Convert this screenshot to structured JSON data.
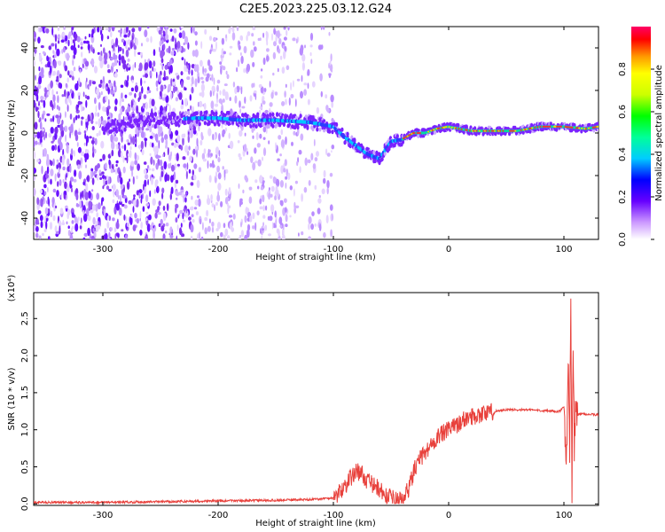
{
  "title": "C2E5.2023.225.03.12.G24",
  "colors": {
    "snr_line": "#e8413c",
    "spec_low": "#8f2cf0",
    "spec_mid": "#00c8ff",
    "spec_high": "#ff2020"
  },
  "chart_data": [
    {
      "type": "heatmap",
      "name": "spectrogram",
      "xlabel": "Height of straight line (km)",
      "ylabel": "Frequency (Hz)",
      "xlim": [
        -360,
        130
      ],
      "ylim": [
        -50,
        50
      ],
      "xticks": [
        -300,
        -200,
        -100,
        0,
        100
      ],
      "yticks": [
        -40,
        -20,
        0,
        20,
        40
      ],
      "colorbar": {
        "label": "Normalized spectral amplitude",
        "range": [
          0,
          1
        ],
        "ticks": [
          "0.0",
          "0.2",
          "0.4",
          "0.6",
          "0.8"
        ]
      },
      "ridge": {
        "x": [
          -280,
          -250,
          -220,
          -200,
          -180,
          -150,
          -120,
          -100,
          -90,
          -80,
          -70,
          -60,
          -50,
          -40,
          -30,
          -20,
          -10,
          0,
          20,
          40,
          60,
          80,
          100,
          120,
          130
        ],
        "y": [
          6,
          6,
          7,
          7,
          6,
          6,
          5,
          3,
          -2,
          -6,
          -10,
          -12,
          -4,
          -3,
          0,
          0,
          2,
          3,
          1,
          1,
          1,
          3,
          3,
          2,
          3
        ]
      }
    },
    {
      "type": "line",
      "name": "snr",
      "xlabel": "Height of straight line (km)",
      "ylabel": "SNR (10 * v/v)",
      "multiplier": "(x10⁴)",
      "xlim": [
        -360,
        130
      ],
      "ylim": [
        -0.02,
        2.85
      ],
      "xticks": [
        -300,
        -200,
        -100,
        0,
        100
      ],
      "yticks": [
        "0.0",
        "0.5",
        "1.0",
        "1.5",
        "2.0",
        "2.5"
      ],
      "x": [
        -360,
        -300,
        -250,
        -200,
        -150,
        -120,
        -100,
        -95,
        -90,
        -85,
        -80,
        -75,
        -70,
        -65,
        -60,
        -55,
        -50,
        -45,
        -40,
        -35,
        -30,
        -25,
        -20,
        -15,
        -10,
        -5,
        0,
        5,
        10,
        15,
        20,
        25,
        30,
        40,
        50,
        60,
        70,
        80,
        90,
        95,
        100,
        102,
        104,
        105,
        106,
        107,
        108,
        109,
        110,
        112,
        115,
        120,
        130
      ],
      "y": [
        0.02,
        0.02,
        0.03,
        0.04,
        0.05,
        0.06,
        0.08,
        0.15,
        0.25,
        0.35,
        0.45,
        0.4,
        0.3,
        0.25,
        0.2,
        0.1,
        0.08,
        0.05,
        0.05,
        0.2,
        0.45,
        0.6,
        0.7,
        0.8,
        0.9,
        0.95,
        1.0,
        1.05,
        1.1,
        1.15,
        1.18,
        1.2,
        1.22,
        1.25,
        1.27,
        1.27,
        1.27,
        1.26,
        1.25,
        1.24,
        1.3,
        0.5,
        1.9,
        0.8,
        2.8,
        0.1,
        2.2,
        0.7,
        1.25,
        1.2,
        1.22,
        1.21,
        1.2
      ]
    }
  ]
}
